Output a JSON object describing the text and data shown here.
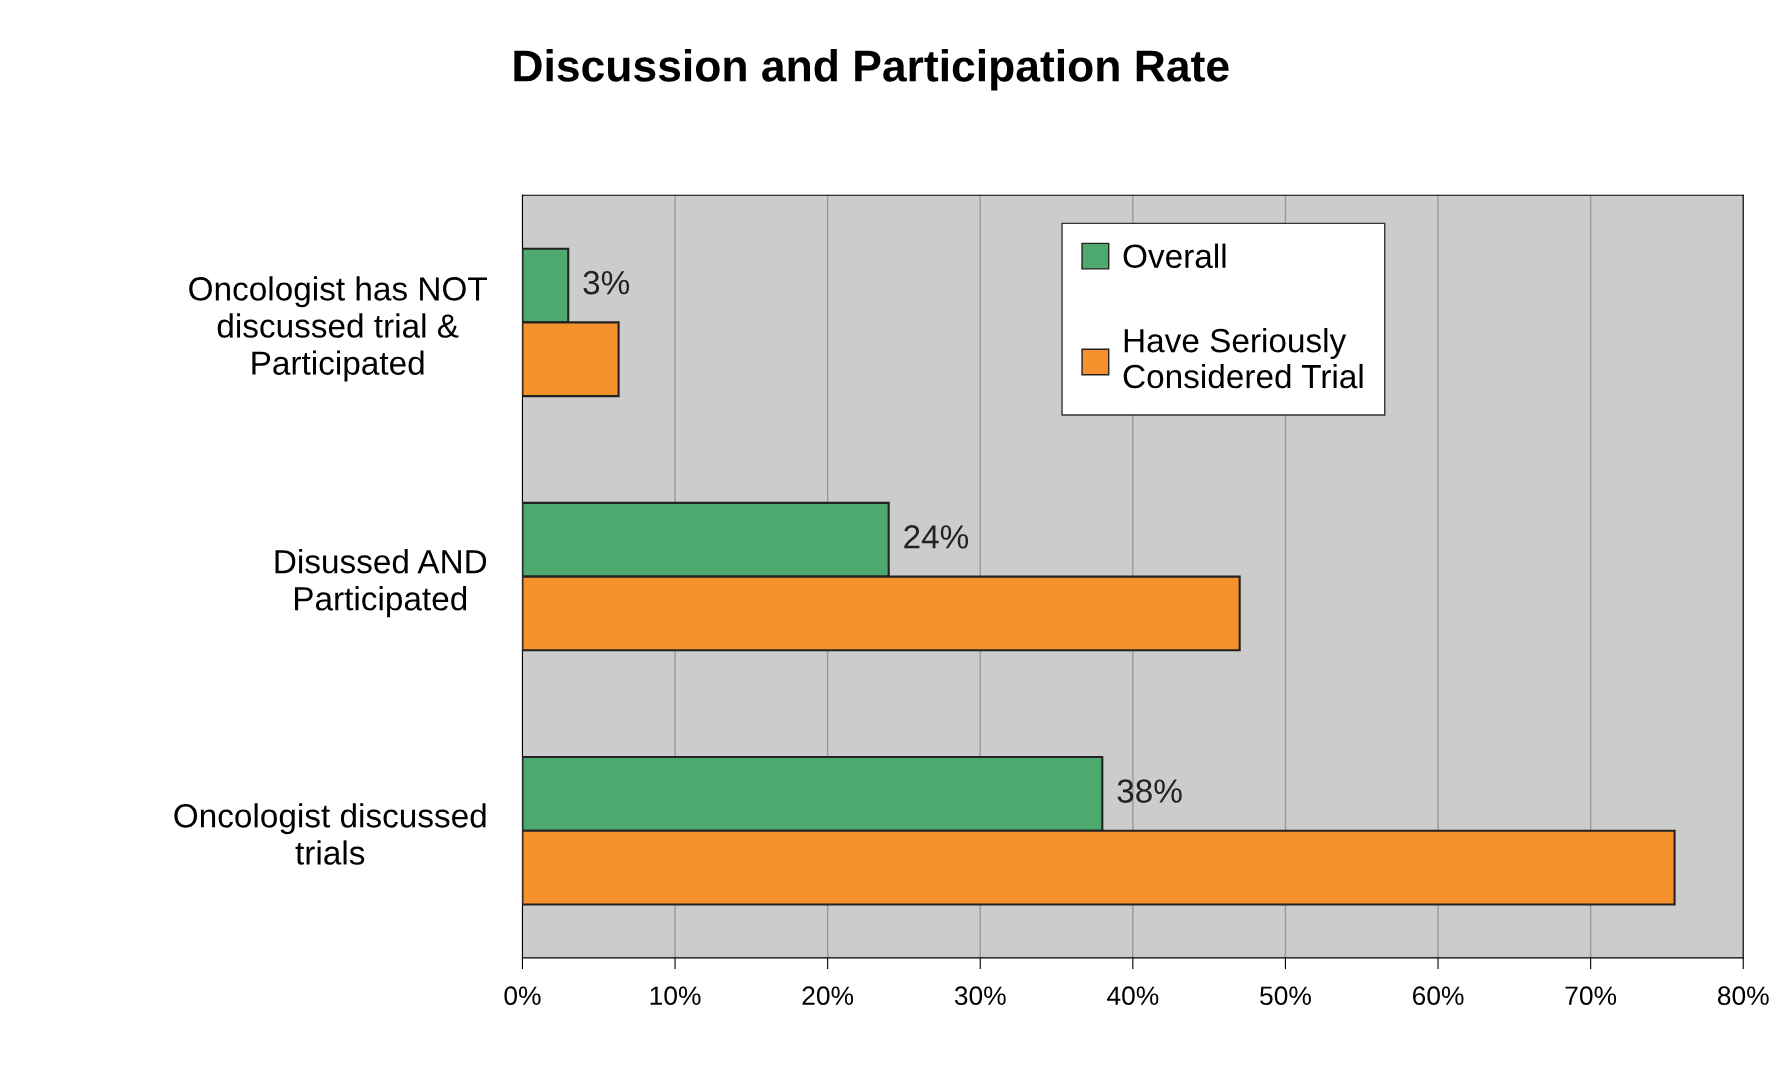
{
  "chart_data": {
    "type": "bar",
    "orientation": "horizontal",
    "title": "Discussion and Participation Rate",
    "categories": [
      "Oncologist has NOT\ndiscussed trial &\nParticipated",
      "Disussed AND\nParticipated",
      "Oncologist discussed\ntrials"
    ],
    "series": [
      {
        "name": "Overall",
        "color": "#4ea96f",
        "values": [
          3,
          24,
          38
        ],
        "value_labels": [
          "3%",
          "24%",
          "38%"
        ]
      },
      {
        "name": "Have Seriously\nConsidered Trial",
        "color": "#f5922d",
        "values": [
          6.3,
          47,
          75.5
        ]
      }
    ],
    "xlim": [
      0,
      80
    ],
    "xticks": [
      {
        "value": 0,
        "label": "0%"
      },
      {
        "value": 10,
        "label": "10%"
      },
      {
        "value": 20,
        "label": "20%"
      },
      {
        "value": 30,
        "label": "30%"
      },
      {
        "value": 40,
        "label": "40%"
      },
      {
        "value": 50,
        "label": "50%"
      },
      {
        "value": 60,
        "label": "60%"
      },
      {
        "value": 70,
        "label": "70%"
      },
      {
        "value": 80,
        "label": "80%"
      }
    ],
    "grid": "x",
    "legend": "top right"
  }
}
